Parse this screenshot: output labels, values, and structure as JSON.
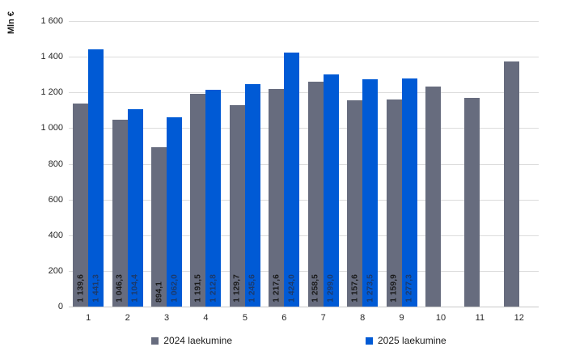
{
  "chart_data": {
    "type": "bar",
    "title": "",
    "xlabel": "",
    "ylabel": "Mln €",
    "ylim": [
      0,
      1600
    ],
    "ytick_interval": 200,
    "ytick_labels": [
      "0",
      "200",
      "400",
      "600",
      "800",
      "1 000",
      "1 200",
      "1 400",
      "1 600"
    ],
    "grid": true,
    "legend_position": "bottom",
    "categories": [
      "1",
      "2",
      "3",
      "4",
      "5",
      "6",
      "7",
      "8",
      "9",
      "10",
      "11",
      "12"
    ],
    "series": [
      {
        "name": "2024 laekumine",
        "color": "#676C7E",
        "label_color": "#1a1a1a",
        "values": [
          1139.6,
          1046.3,
          894.1,
          1191.5,
          1129.7,
          1217.6,
          1258.5,
          1157.6,
          1159.9,
          1232,
          1168,
          1373
        ],
        "labels": [
          "1 139,6",
          "1 046,3",
          "894,1",
          "1 191,5",
          "1 129,7",
          "1 217,6",
          "1 258,5",
          "1 157,6",
          "1 159,9",
          "",
          "",
          ""
        ]
      },
      {
        "name": "2025 laekumine",
        "color": "#005AD5",
        "label_color": "#1c3a6b",
        "values": [
          1441.3,
          1104.4,
          1062.0,
          1212.8,
          1245.6,
          1424.0,
          1299.0,
          1273.5,
          1277.3,
          null,
          null,
          null
        ],
        "labels": [
          "1 441,3",
          "1 104,4",
          "1 062,0",
          "1 212,8",
          "1 245,6",
          "1 424,0",
          "1 299,0",
          "1 273,5",
          "1 277,3",
          "",
          "",
          ""
        ]
      }
    ]
  }
}
